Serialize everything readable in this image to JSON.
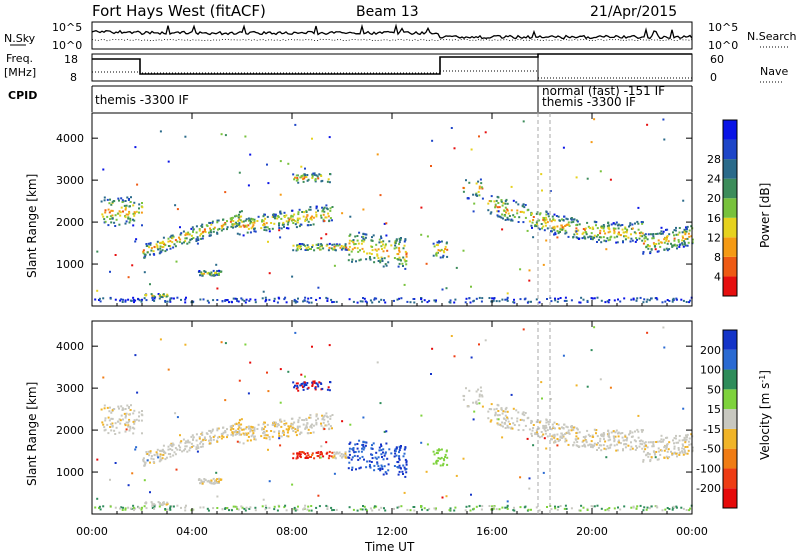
{
  "header": {
    "station": "Fort Hays West (fitACF)",
    "beam": "Beam 13",
    "date": "21/Apr/2015"
  },
  "strip": {
    "nsky_label": "N.Sky",
    "nsearch_label": "N.Search",
    "nsearch_ticks": [
      "10^5",
      "10^0"
    ],
    "nsky_ticks": [
      "10^5",
      "10^0"
    ],
    "freq_label_1": "Freq.",
    "freq_label_2": "[MHz]",
    "freq_ticks": [
      "18",
      "8"
    ],
    "nave_label": "Nave",
    "nave_ticks": [
      "60",
      "0"
    ],
    "cpid_label": "CPID",
    "cpid_text_1": "themis -3300 IF",
    "cpid_text_2": "normal (fast) -151 IF",
    "cpid_text_3": "themis -3300 IF"
  },
  "chart_data": [
    {
      "type": "heatmap",
      "name": "power",
      "ylabel": "Slant Range [km]",
      "yticks": [
        "1000",
        "2000",
        "3000",
        "4000"
      ],
      "yrange": [
        0,
        4600
      ],
      "colorbar_label": "Power [dB]",
      "colorbar_ticks": [
        "4",
        "8",
        "12",
        "16",
        "20",
        "24",
        "28"
      ],
      "colorbar_colors": [
        "#0a14e6",
        "#1e46c8",
        "#2a6a8a",
        "#3c8c5a",
        "#78c23c",
        "#e6d21e",
        "#f59a14",
        "#ee5a14",
        "#e60f0f"
      ],
      "grid": false
    },
    {
      "type": "heatmap",
      "name": "velocity",
      "ylabel": "Slant Range [km]",
      "yticks": [
        "1000",
        "2000",
        "3000",
        "4000"
      ],
      "yrange": [
        0,
        4600
      ],
      "colorbar_label": "Velocity [m s",
      "colorbar_label_sup": "-1",
      "colorbar_label_end": "]",
      "colorbar_ticks": [
        "200",
        "100",
        "50",
        "15",
        "-15",
        "-50",
        "-100",
        "-200"
      ],
      "colorbar_colors": [
        "#1434c8",
        "#2a6ad2",
        "#2e8c5a",
        "#7ed23c",
        "#c8c8c0",
        "#f0b428",
        "#f07c14",
        "#ee3c14",
        "#e60a0a"
      ],
      "grid": false
    }
  ],
  "xaxis": {
    "label": "Time UT",
    "ticks": [
      "00:00",
      "04:00",
      "08:00",
      "12:00",
      "16:00",
      "20:00",
      "00:00"
    ]
  }
}
